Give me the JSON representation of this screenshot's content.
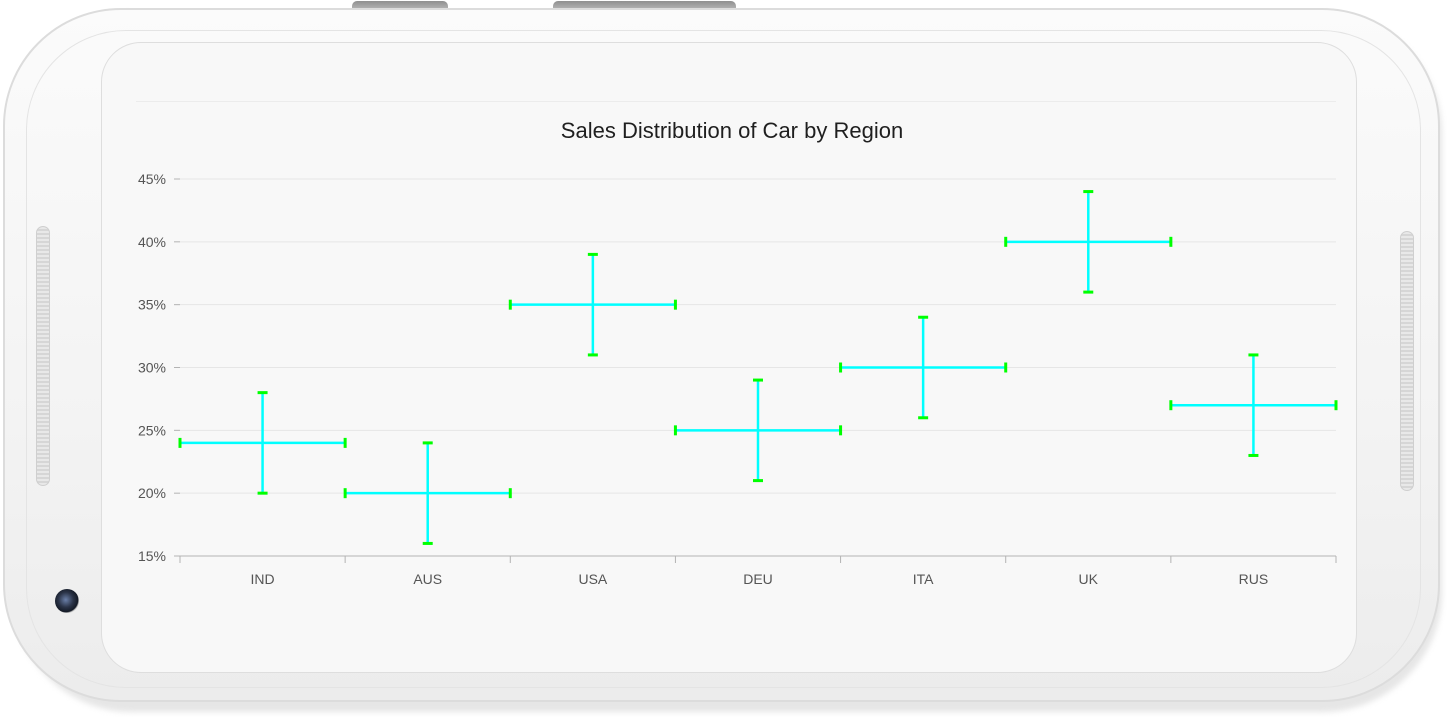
{
  "colors": {
    "error_bar": "#00ff00",
    "marker": "#00ffff",
    "grid": "#e6e6e6",
    "axis": "#b3b3b3"
  },
  "chart_data": {
    "type": "errorbar",
    "title": "Sales Distribution of Car by Region",
    "xlabel": "",
    "ylabel": "",
    "categories": [
      "IND",
      "AUS",
      "USA",
      "DEU",
      "ITA",
      "UK",
      "RUS"
    ],
    "values": [
      24,
      20,
      35,
      25,
      30,
      40,
      27
    ],
    "y_error": 4,
    "x_error": 0.5,
    "ylim": [
      15,
      45
    ],
    "yticks": [
      15,
      20,
      25,
      30,
      35,
      40,
      45
    ],
    "ytick_labels": [
      "15%",
      "20%",
      "25%",
      "30%",
      "35%",
      "40%",
      "45%"
    ],
    "grid": true,
    "legend": "none"
  }
}
